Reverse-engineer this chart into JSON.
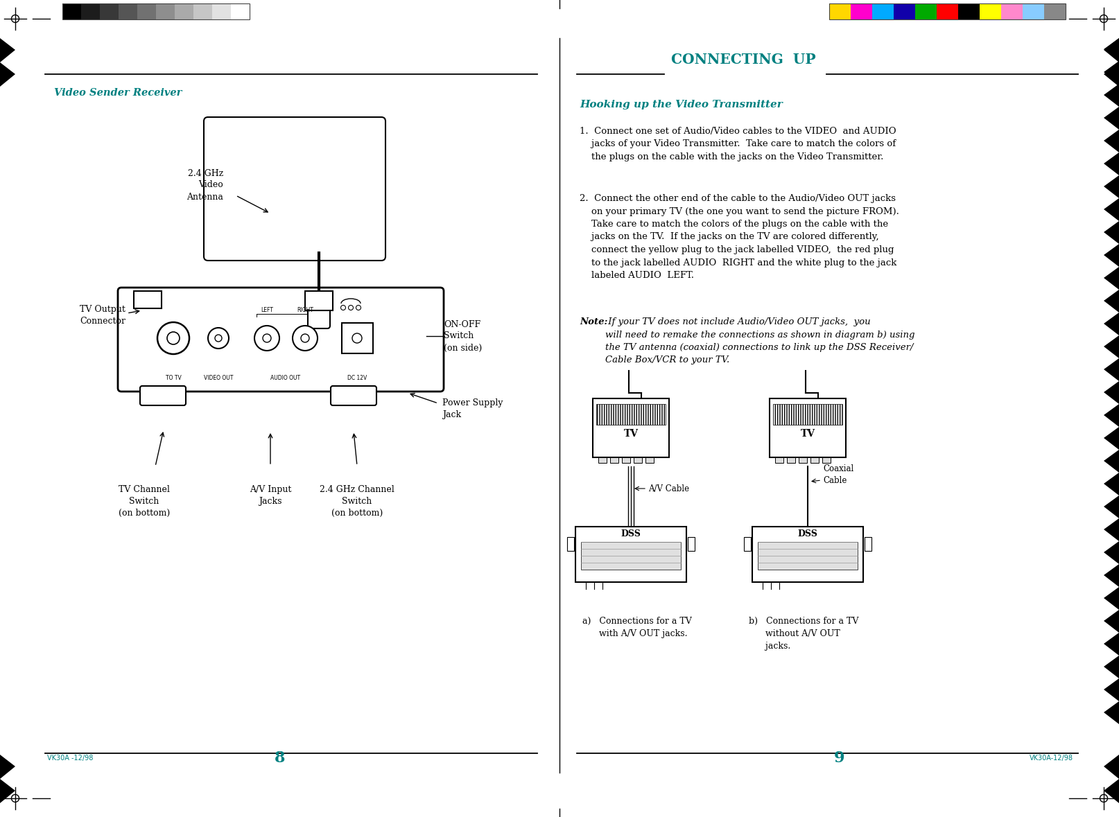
{
  "bg_color": "#ffffff",
  "page_width": 16.14,
  "page_height": 11.79,
  "left_title": "Video Sender Receiver",
  "left_title_color": "#008080",
  "right_title": "Connecting Up",
  "right_heading": "Hooking up the Video Transmitter",
  "right_heading_color": "#008080",
  "page_num_left": "8",
  "page_num_right": "9",
  "page_num_color": "#008080",
  "footer_left": "VK30A -12/98",
  "footer_right": "VK30A-12/98",
  "footer_color": "#008080",
  "caption_a": "a)   Connections for a TV\n      with A/V OUT jacks.",
  "caption_b": "b)   Connections for a TV\n      without A/V OUT\n      jacks.",
  "label_antenna": "2.4 GHz\nVideo\nAntenna",
  "label_tv_output": "TV Output\nConnector",
  "label_on_off": "ON-OFF\nSwitch\n(on side)",
  "label_power": "Power Supply\nJack",
  "label_tv_channel": "TV Channel\nSwitch\n(on bottom)",
  "label_av_input": "A/V Input\nJacks",
  "label_24ghz_channel": "2.4 GHz Channel\nSwitch\n(on bottom)",
  "label_av_cable": "A/V Cable",
  "label_coaxial": "Coaxial\nCable",
  "label_to_tv": "TO TV",
  "label_left": "LEFT",
  "label_right": "RIGHT",
  "label_video_out": "VIDEO OUT",
  "label_audio_out": "AUDIO OUT",
  "label_dc12v": "DC 12V",
  "label_tv": "TV",
  "label_dss": "DSS",
  "gray_bars": [
    "#000000",
    "#1c1c1c",
    "#383838",
    "#555555",
    "#717171",
    "#8e8e8e",
    "#aaaaaa",
    "#c6c6c6",
    "#e2e2e2",
    "#ffffff"
  ],
  "color_bars": [
    "#FFD700",
    "#FF00CC",
    "#00AAFF",
    "#1100AA",
    "#00AA00",
    "#FF0000",
    "#000000",
    "#FFFF00",
    "#FF88CC",
    "#88CCFF",
    "#888888"
  ],
  "divider_color": "#000000",
  "text_color": "#000000",
  "device_fill": "#f8f8f8",
  "device_edge": "#000000"
}
